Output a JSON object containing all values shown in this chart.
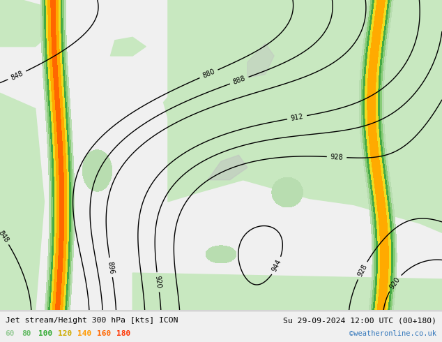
{
  "title_left": "Jet stream/Height 300 hPa [kts] ICON",
  "title_right": "Su 29-09-2024 12:00 UTC (00+180)",
  "credit": "©weatheronline.co.uk",
  "legend_values": [
    60,
    80,
    100,
    120,
    140,
    160,
    180
  ],
  "legend_text_colors": [
    "#99cc99",
    "#66bb66",
    "#33aa33",
    "#ccaa00",
    "#ff9900",
    "#ff6600",
    "#ff3300"
  ],
  "bg_color": "#f0f0f0",
  "map_bg": "#ffffff",
  "land_color": "#c8e8c0",
  "wind_levels": [
    60,
    80,
    100,
    120,
    140,
    160,
    180,
    200
  ],
  "wind_colors": [
    "#b8ddb0",
    "#88cc77",
    "#44aa44",
    "#eedd22",
    "#ffaa00",
    "#ff6600",
    "#ff2200",
    "#cc0000"
  ],
  "contour_color": "#000000",
  "info_bar_color": "#e8e8e8"
}
